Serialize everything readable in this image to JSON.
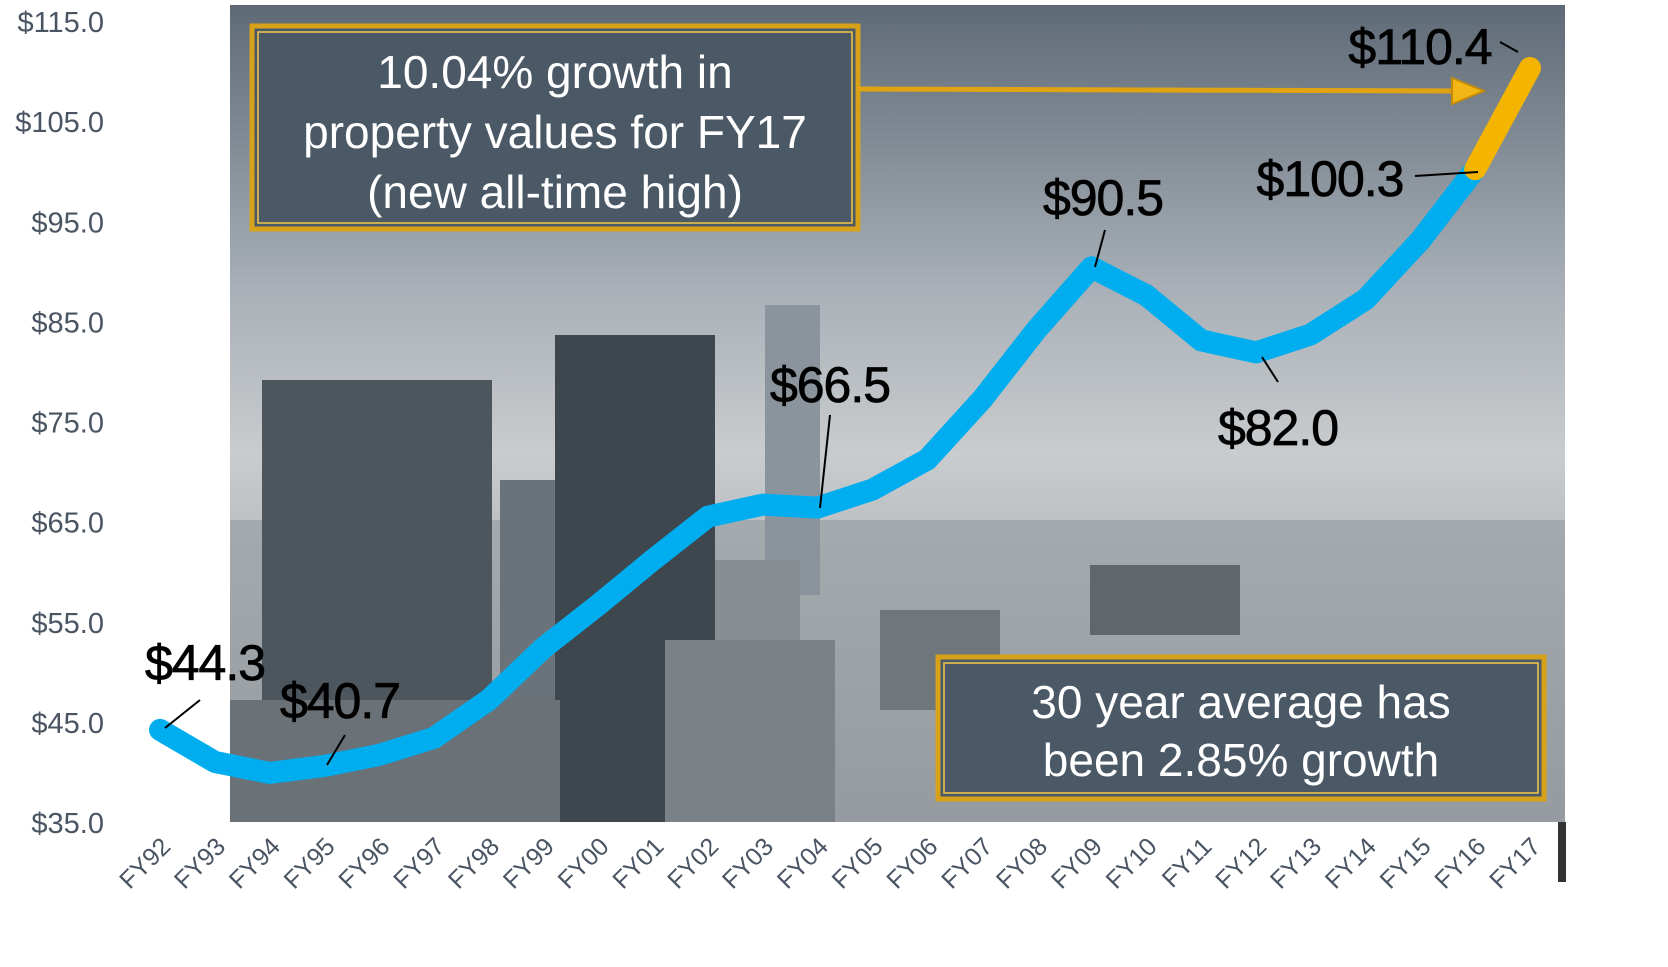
{
  "chart_data": {
    "type": "line",
    "categories": [
      "FY92",
      "FY93",
      "FY94",
      "FY95",
      "FY96",
      "FY97",
      "FY98",
      "FY99",
      "FY00",
      "FY01",
      "FY02",
      "FY03",
      "FY04",
      "FY05",
      "FY06",
      "FY07",
      "FY08",
      "FY09",
      "FY10",
      "FY11",
      "FY12",
      "FY13",
      "FY14",
      "FY15",
      "FY16",
      "FY17"
    ],
    "series": [
      {
        "color": "#00aeef",
        "values": [
          44.3,
          41.1,
          40.0,
          40.7,
          41.8,
          43.5,
          47.3,
          52.5,
          56.8,
          61.3,
          65.6,
          66.8,
          66.5,
          68.3,
          71.3,
          77.3,
          84.3,
          90.5,
          87.7,
          83.2,
          82.0,
          83.8,
          87.3,
          93.2,
          100.3,
          null
        ],
        "value_labels": [
          "$44.3",
          null,
          null,
          "$40.7",
          null,
          null,
          null,
          null,
          null,
          null,
          null,
          null,
          "$66.5",
          null,
          null,
          null,
          null,
          "$90.5",
          null,
          null,
          "$82.0",
          null,
          null,
          null,
          "$100.3",
          null
        ]
      },
      {
        "color": "#f5b400",
        "values": [
          null,
          null,
          null,
          null,
          null,
          null,
          null,
          null,
          null,
          null,
          null,
          null,
          null,
          null,
          null,
          null,
          null,
          null,
          null,
          null,
          null,
          null,
          null,
          null,
          100.3,
          110.4
        ],
        "value_labels": [
          null,
          null,
          null,
          null,
          null,
          null,
          null,
          null,
          null,
          null,
          null,
          null,
          null,
          null,
          null,
          null,
          null,
          null,
          null,
          null,
          null,
          null,
          null,
          null,
          null,
          "$110.4"
        ]
      }
    ],
    "ylim": [
      35,
      115
    ],
    "yticks": [
      {
        "value": 35,
        "label": "$35.0"
      },
      {
        "value": 45,
        "label": "$45.0"
      },
      {
        "value": 55,
        "label": "$55.0"
      },
      {
        "value": 65,
        "label": "$65.0"
      },
      {
        "value": 75,
        "label": "$75.0"
      },
      {
        "value": 85,
        "label": "$85.0"
      },
      {
        "value": 95,
        "label": "$95.0"
      },
      {
        "value": 105,
        "label": "$105.0"
      },
      {
        "value": 115,
        "label": "$115.0"
      }
    ],
    "annotations": [
      {
        "lines": [
          "10.04% growth in",
          "property values for FY17",
          "(new all-time high)"
        ]
      },
      {
        "lines": [
          "30 year average has",
          "been 2.85% growth"
        ]
      }
    ]
  }
}
